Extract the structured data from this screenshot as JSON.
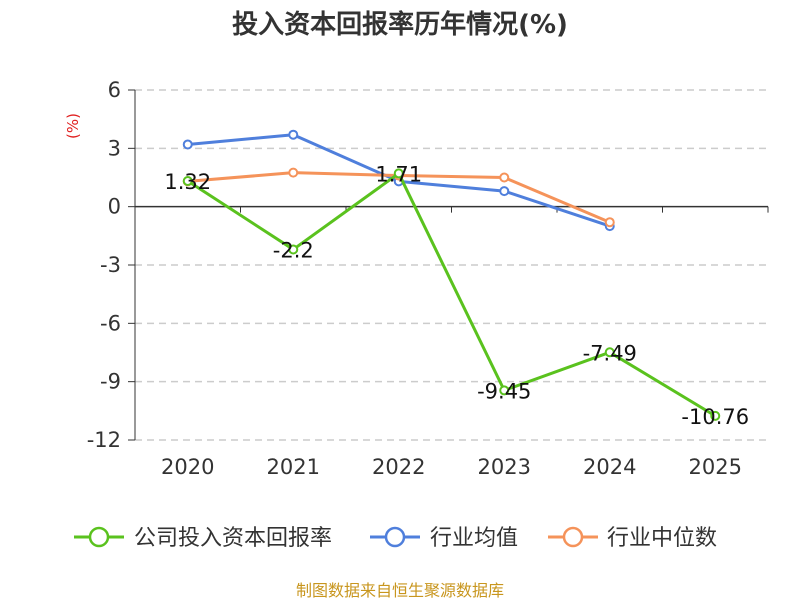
{
  "chart_data": {
    "type": "line",
    "title": "投入资本回报率历年情况(%)",
    "ylabel": "(%)",
    "xlabel": "",
    "categories": [
      "2020",
      "2021",
      "2022",
      "2023",
      "2024",
      "2025"
    ],
    "ylim": [
      -12,
      6
    ],
    "yticks": [
      6,
      3,
      0,
      -3,
      -6,
      -9,
      -12
    ],
    "grid": true,
    "legend_position": "bottom",
    "series": [
      {
        "name": "公司投入资本回报率",
        "color": "#5ac21e",
        "values": [
          1.32,
          -2.2,
          1.71,
          -9.45,
          -7.49,
          -10.76
        ],
        "labels": [
          "1.32",
          "-2.2",
          "1.71",
          "-9.45",
          "-7.49",
          "-10.76"
        ]
      },
      {
        "name": "行业均值",
        "color": "#4f7fdc",
        "values": [
          3.2,
          3.7,
          1.3,
          0.8,
          -1.0,
          null
        ]
      },
      {
        "name": "行业中位数",
        "color": "#f5935a",
        "values": [
          1.3,
          1.75,
          1.6,
          1.5,
          -0.8,
          null
        ]
      }
    ]
  },
  "source_note": "制图数据来自恒生聚源数据库"
}
